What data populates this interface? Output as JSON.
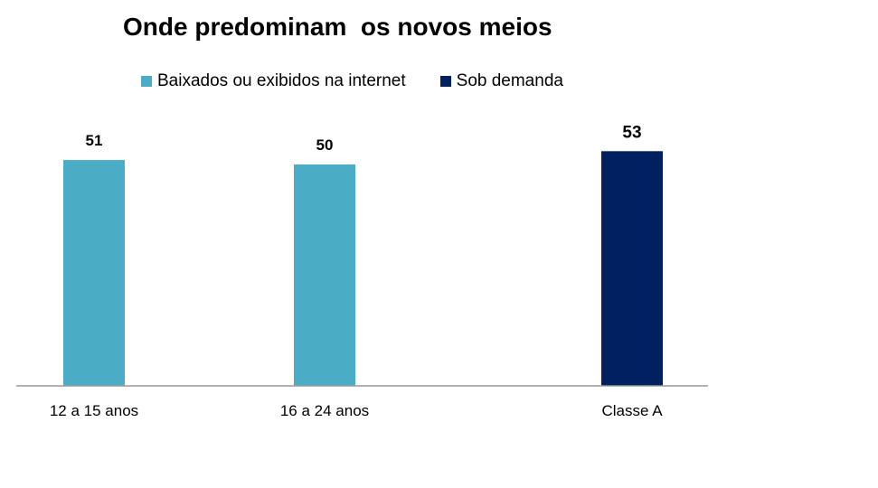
{
  "chart_data": {
    "type": "bar",
    "title": "Onde predominam  os novos meios",
    "categories": [
      "12 a 15 anos",
      "16 a 24 anos",
      "Classe A"
    ],
    "series": [
      {
        "name": "Baixados ou exibidos na internet",
        "color": "#4BACC6",
        "values": [
          51,
          50,
          null
        ]
      },
      {
        "name": "Sob demanda",
        "color": "#002060",
        "values": [
          null,
          null,
          53
        ]
      }
    ],
    "data_labels": [
      "51",
      "50",
      "53"
    ],
    "ylim": [
      0,
      100
    ],
    "xlabel": "",
    "ylabel": "",
    "grid": false,
    "legend_position": "top"
  }
}
